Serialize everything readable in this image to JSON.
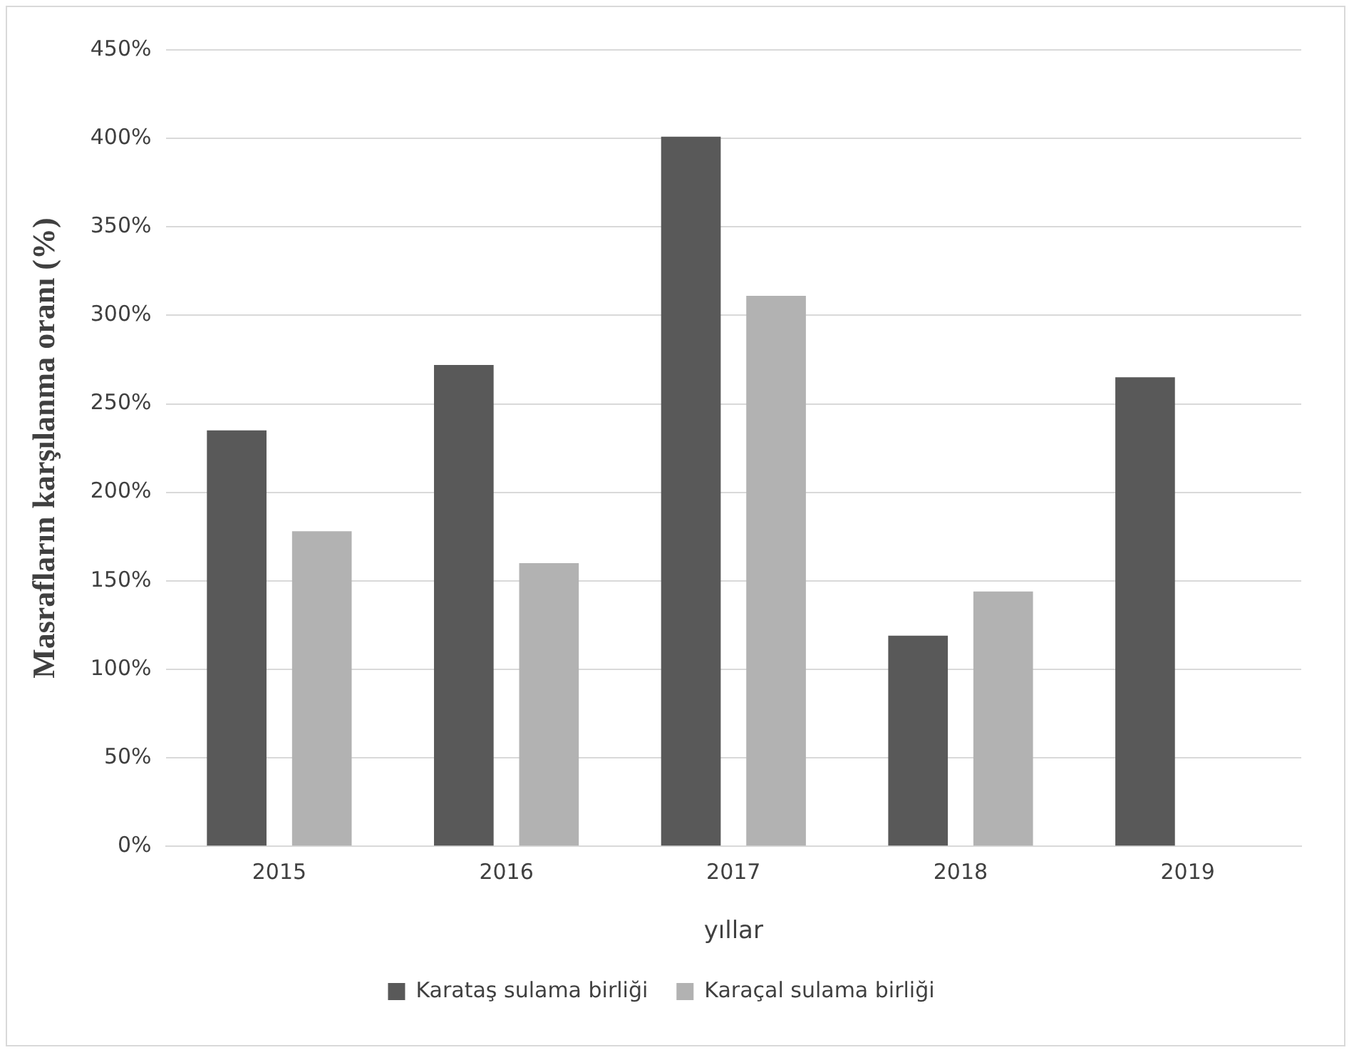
{
  "chart_data": {
    "type": "bar",
    "xlabel": "yıllar",
    "ylabel": "Masrafların karşılanma oranı (%)",
    "categories": [
      "2015",
      "2016",
      "2017",
      "2018",
      "2019"
    ],
    "series": [
      {
        "name": "Karataş sulama birliği",
        "color": "#595959",
        "values": [
          235,
          272,
          401,
          119,
          265
        ]
      },
      {
        "name": "Karaçal sulama birliği",
        "color": "#b2b2b2",
        "values": [
          178,
          160,
          311,
          144,
          null
        ]
      }
    ],
    "ylim": [
      0,
      450
    ],
    "yticks": [
      {
        "value": 0,
        "label": "0%"
      },
      {
        "value": 50,
        "label": "50%"
      },
      {
        "value": 100,
        "label": "100%"
      },
      {
        "value": 150,
        "label": "150%"
      },
      {
        "value": 200,
        "label": "200%"
      },
      {
        "value": 250,
        "label": "250%"
      },
      {
        "value": 300,
        "label": "300%"
      },
      {
        "value": 350,
        "label": "350%"
      },
      {
        "value": 400,
        "label": "400%"
      },
      {
        "value": 450,
        "label": "450%"
      }
    ],
    "grid": "y",
    "legend": "bottom"
  }
}
